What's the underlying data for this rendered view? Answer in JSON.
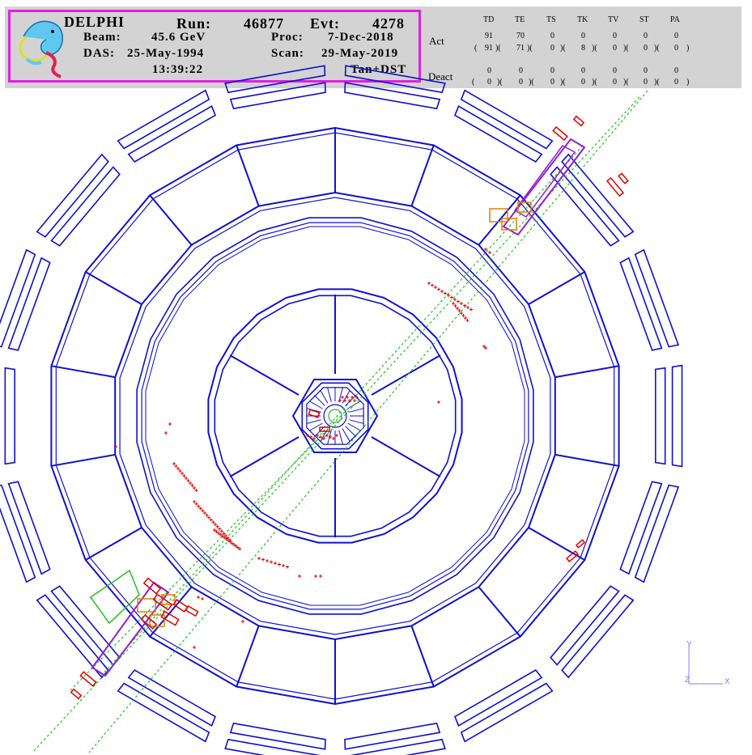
{
  "header": {
    "experiment": "DELPHI",
    "run_label": "Run:",
    "run_value": "46877",
    "evt_label": "Evt:",
    "evt_value": "4278",
    "beam_label": "Beam:",
    "beam_value": "45.6 GeV",
    "proc_label": "Proc:",
    "proc_value": "7-Dec-2018",
    "das_label": "DAS:",
    "das_value": "25-May-1994",
    "scan_label": "Scan:",
    "scan_value": "29-May-2019",
    "time_value": "13:39:22",
    "mode_value": "Tan+DST"
  },
  "detector_table": {
    "columns": [
      "TD",
      "TE",
      "TS",
      "TK",
      "TV",
      "ST",
      "PA"
    ],
    "act_label": "Act",
    "deact_label": "Deact",
    "act_values": [
      "91",
      "70",
      "0",
      "0",
      "0",
      "0",
      "0"
    ],
    "act_paren": [
      "91",
      "71",
      "0",
      "8",
      "0",
      "0",
      "0"
    ],
    "deact_values": [
      "0",
      "0",
      "0",
      "0",
      "0",
      "0",
      "0"
    ],
    "deact_paren": [
      "0",
      "0",
      "0",
      "0",
      "0",
      "0",
      "0"
    ]
  },
  "axes": {
    "y_label": "Y",
    "z_label": "Z",
    "x_label": "X"
  },
  "colors": {
    "detector": "#1010d0",
    "hits": "#e00000",
    "tracks": "#20c020",
    "frame": "#e020e0",
    "header_bg": "#d3d3d3",
    "violet": "#9020d0",
    "orange": "#e08000",
    "axis": "#8080ff"
  },
  "icons": [
    "dolphin-logo"
  ]
}
